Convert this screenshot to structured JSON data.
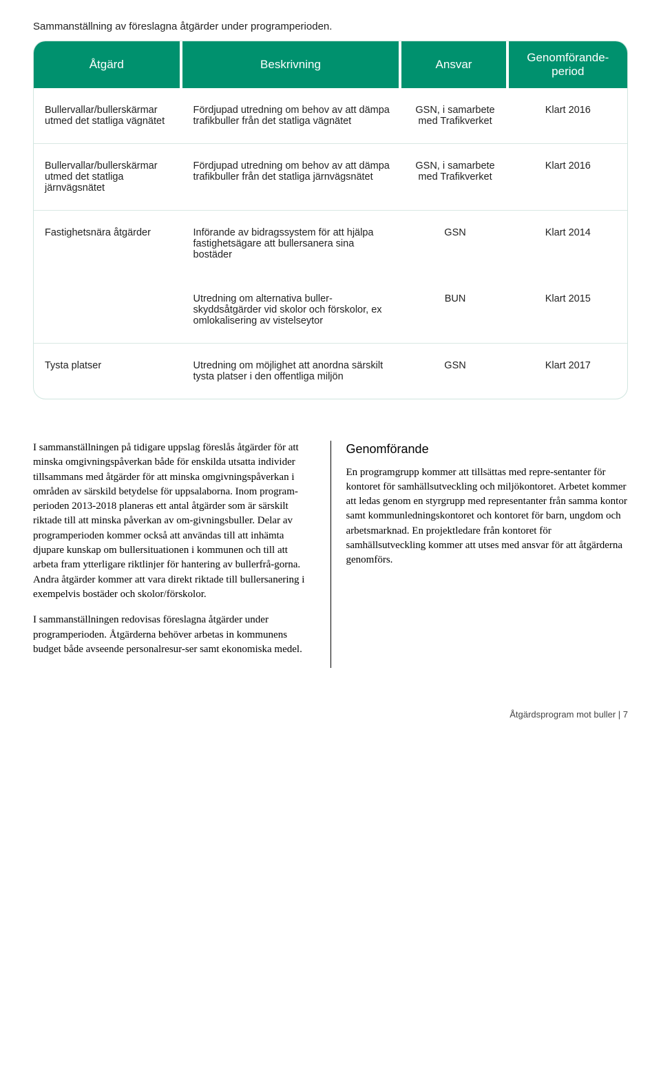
{
  "caption": "Sammanställning av föreslagna åtgärder under programperioden.",
  "table": {
    "headers": {
      "atgard": "Åtgärd",
      "beskrivning": "Beskrivning",
      "ansvar": "Ansvar",
      "period": "Genomförande-period"
    },
    "rows": [
      {
        "atgard": "Bullervallar/bullerskärmar utmed det statliga vägnätet",
        "beskrivning": "Fördjupad utredning om behov av att dämpa trafikbuller från det statliga vägnätet",
        "ansvar": "GSN, i samarbete med Trafikverket",
        "period": "Klart 2016"
      },
      {
        "atgard": "Bullervallar/bullerskärmar utmed det statliga järnvägsnätet",
        "beskrivning": "Fördjupad utredning om behov av att dämpa trafikbuller från det statliga järnvägsnätet",
        "ansvar": "GSN, i samarbete med Trafikverket",
        "period": "Klart 2016"
      },
      {
        "atgard": "Fastighetsnära åtgärder",
        "beskrivning": "Införande av bidragssystem för att hjälpa fastighetsägare att bullersanera sina bostäder",
        "ansvar": "GSN",
        "period": "Klart 2014",
        "sub": {
          "beskrivning": "Utredning om alternativa buller-skyddsåtgärder vid skolor och förskolor, ex omlokalisering av vistelseytor",
          "ansvar": "BUN",
          "period": "Klart 2015"
        }
      },
      {
        "atgard": "Tysta platser",
        "beskrivning": "Utredning om möjlighet att anordna särskilt tysta platser i den offentliga miljön",
        "ansvar": "GSN",
        "period": "Klart 2017"
      }
    ]
  },
  "body": {
    "left": {
      "p1": "I sammanställningen på tidigare uppslag föreslås åtgärder för att minska omgivningspåverkan både för enskilda utsatta individer tillsammans med åtgärder för att minska omgivningspåverkan i områden av särskild betydelse för uppsalaborna. Inom program-perioden 2013-2018 planeras ett antal åtgärder som är särskilt riktade till att minska påverkan av om-givningsbuller. Delar av programperioden kommer också att användas till att inhämta djupare kunskap om bullersituationen i kommunen och till att arbeta fram ytterligare riktlinjer för hantering av bullerfrå-gorna. Andra åtgärder kommer att vara direkt riktade till bullersanering i exempelvis bostäder och skolor/förskolor.",
      "p2": "I sammanställningen redovisas föreslagna åtgärder under programperioden. Åtgärderna behöver arbetas in kommunens budget både avseende personalresur-ser samt ekonomiska medel."
    },
    "right": {
      "heading": "Genomförande",
      "p1": "En programgrupp kommer att tillsättas med repre-sentanter för kontoret för samhällsutveckling och miljökontoret. Arbetet kommer att ledas genom en styrgrupp med representanter från samma kontor samt kommunledningskontoret och kontoret för barn, ungdom och arbetsmarknad. En projektledare från kontoret för samhällsutveckling kommer att utses med ansvar för att åtgärderna genomförs."
    }
  },
  "footer": "Åtgärdsprogram mot buller | 7",
  "colors": {
    "header_bg": "#00916e",
    "header_text": "#ffffff",
    "border": "#d0e5df",
    "sep": "#d9e8e3"
  }
}
